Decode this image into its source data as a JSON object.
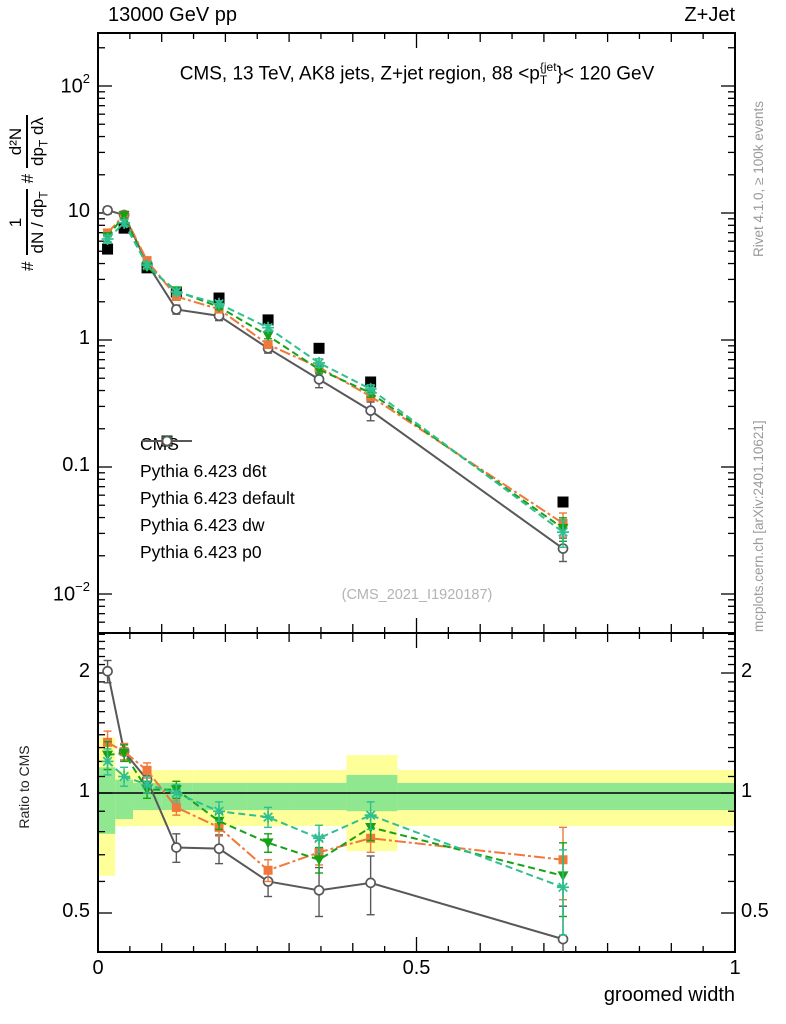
{
  "header": {
    "left": "13000 GeV pp",
    "right": "Z+Jet"
  },
  "title": {
    "prefix": "CMS, 13 TeV, AK8 jets, Z+jet region, 88 <p",
    "sup": "{jet",
    "sub": "T",
    "suffix": "}< 120 GeV"
  },
  "axis_labels": {
    "main_y": {
      "h1": "#",
      "f1n": "1",
      "f1d_a": "dN / dp",
      "f1d_sub": "T",
      "h2": "#",
      "f2n": "d²N",
      "f2d_a": "dp",
      "f2d_sub": "T",
      "f2d_b": " dλ"
    },
    "ratio_y": "Ratio to CMS",
    "x": "groomed width"
  },
  "side_labels": {
    "rivet": "Rivet 4.1.0, ≥ 100k events",
    "mcplots": "mcplots.cern.ch [arXiv:2401.10621]"
  },
  "watermark": "(CMS_2021_I1920187)",
  "colors": {
    "band_outer": "#ffff99",
    "band_inner": "#8fe88f",
    "unity_line": "#000000",
    "cms": "#000000",
    "d6t": "#2fbf90",
    "default": "#f0783c",
    "dw": "#17a117",
    "p0": "#58585a"
  },
  "chart_data": {
    "type": "line",
    "x_label": "groomed width",
    "x_range": [
      0,
      1
    ],
    "x_ticks": [
      0,
      0.5,
      1
    ],
    "x": [
      0.015,
      0.041,
      0.077,
      0.123,
      0.19,
      0.267,
      0.347,
      0.428,
      0.73
    ],
    "bin_edges": [
      0,
      0.027,
      0.055,
      0.1,
      0.148,
      0.233,
      0.31,
      0.39,
      0.47,
      1.0
    ],
    "main": {
      "y_scale": "log",
      "y_range": [
        0.0049,
        261
      ],
      "y_ticks": [
        100,
        10,
        1,
        0.1,
        0.01
      ]
    },
    "ratio": {
      "y_scale": "log",
      "y_range": [
        0.399,
        2.52
      ],
      "y_ticks": [
        2,
        1,
        0.5
      ],
      "label": "Ratio to CMS",
      "bands": [
        {
          "x0": 0.0,
          "x1": 0.027,
          "outer": [
            0.62,
            1.38
          ],
          "inner": [
            0.79,
            1.16
          ]
        },
        {
          "x0": 0.027,
          "x1": 0.055,
          "outer": [
            0.825,
            1.14
          ],
          "inner": [
            0.86,
            1.08
          ]
        },
        {
          "x0": 0.055,
          "x1": 0.1,
          "outer": [
            0.826,
            1.142
          ],
          "inner": [
            0.906,
            1.06
          ]
        },
        {
          "x0": 0.1,
          "x1": 0.148,
          "outer": [
            0.826,
            1.142
          ],
          "inner": [
            0.906,
            1.06
          ]
        },
        {
          "x0": 0.148,
          "x1": 0.233,
          "outer": [
            0.826,
            1.142
          ],
          "inner": [
            0.906,
            1.06
          ]
        },
        {
          "x0": 0.233,
          "x1": 0.31,
          "outer": [
            0.826,
            1.142
          ],
          "inner": [
            0.906,
            1.06
          ]
        },
        {
          "x0": 0.31,
          "x1": 0.39,
          "outer": [
            0.826,
            1.142
          ],
          "inner": [
            0.906,
            1.06
          ]
        },
        {
          "x0": 0.39,
          "x1": 0.47,
          "outer": [
            0.715,
            1.245
          ],
          "inner": [
            0.9,
            1.11
          ]
        },
        {
          "x0": 0.47,
          "x1": 1.0,
          "outer": [
            0.826,
            1.142
          ],
          "inner": [
            0.906,
            1.06
          ]
        }
      ]
    },
    "series": [
      {
        "name": "CMS",
        "color": "#000000",
        "line": "none",
        "marker": "square",
        "marker_size": 11,
        "values": [
          5.2,
          7.6,
          3.7,
          2.39,
          2.14,
          1.44,
          0.86,
          0.467,
          0.053
        ]
      },
      {
        "name": "Pythia 6.423 d6t",
        "color": "#2fbf90",
        "line": "dashed",
        "marker": "star",
        "marker_size": 12,
        "values": [
          6.24,
          8.36,
          3.89,
          2.39,
          1.93,
          1.25,
          0.66,
          0.411,
          0.0307
        ],
        "ratio": [
          1.2,
          1.1,
          1.05,
          1.0,
          0.9,
          0.87,
          0.77,
          0.88,
          0.58
        ],
        "ratio_err": [
          0.09,
          0.06,
          0.05,
          0.05,
          0.05,
          0.05,
          0.06,
          0.07,
          0.14
        ]
      },
      {
        "name": "Pythia 6.423 default",
        "color": "#f0783c",
        "line": "dashdot",
        "marker": "square",
        "marker_size": 9,
        "values": [
          6.97,
          9.65,
          4.22,
          2.2,
          1.75,
          0.92,
          0.61,
          0.36,
          0.036
        ],
        "ratio": [
          1.34,
          1.27,
          1.14,
          0.92,
          0.82,
          0.64,
          0.71,
          0.77,
          0.68
        ],
        "ratio_err": [
          0.09,
          0.06,
          0.05,
          0.04,
          0.04,
          0.04,
          0.05,
          0.06,
          0.14
        ]
      },
      {
        "name": "Pythia 6.423 dw",
        "color": "#17a117",
        "line": "dashed",
        "marker": "triangle-down",
        "marker_size": 11,
        "values": [
          6.47,
          9.58,
          3.77,
          2.44,
          1.82,
          1.08,
          0.585,
          0.383,
          0.0329
        ],
        "ratio": [
          1.245,
          1.26,
          1.02,
          1.02,
          0.85,
          0.75,
          0.68,
          0.82,
          0.62
        ],
        "ratio_err": [
          0.1,
          0.06,
          0.05,
          0.05,
          0.04,
          0.04,
          0.05,
          0.06,
          0.13
        ]
      },
      {
        "name": "Pythia 6.423 p0",
        "color": "#58585a",
        "line": "solid",
        "marker": "circle-open",
        "marker_size": 10,
        "values": [
          10.5,
          9.65,
          4.0,
          1.74,
          1.55,
          0.86,
          0.49,
          0.278,
          0.0228
        ],
        "ratio": [
          2.02,
          1.27,
          1.08,
          0.73,
          0.725,
          0.6,
          0.57,
          0.595,
          0.43
        ],
        "ratio_err": [
          0.13,
          0.06,
          0.05,
          0.06,
          0.06,
          0.05,
          0.08,
          0.1,
          0.09
        ]
      }
    ]
  }
}
